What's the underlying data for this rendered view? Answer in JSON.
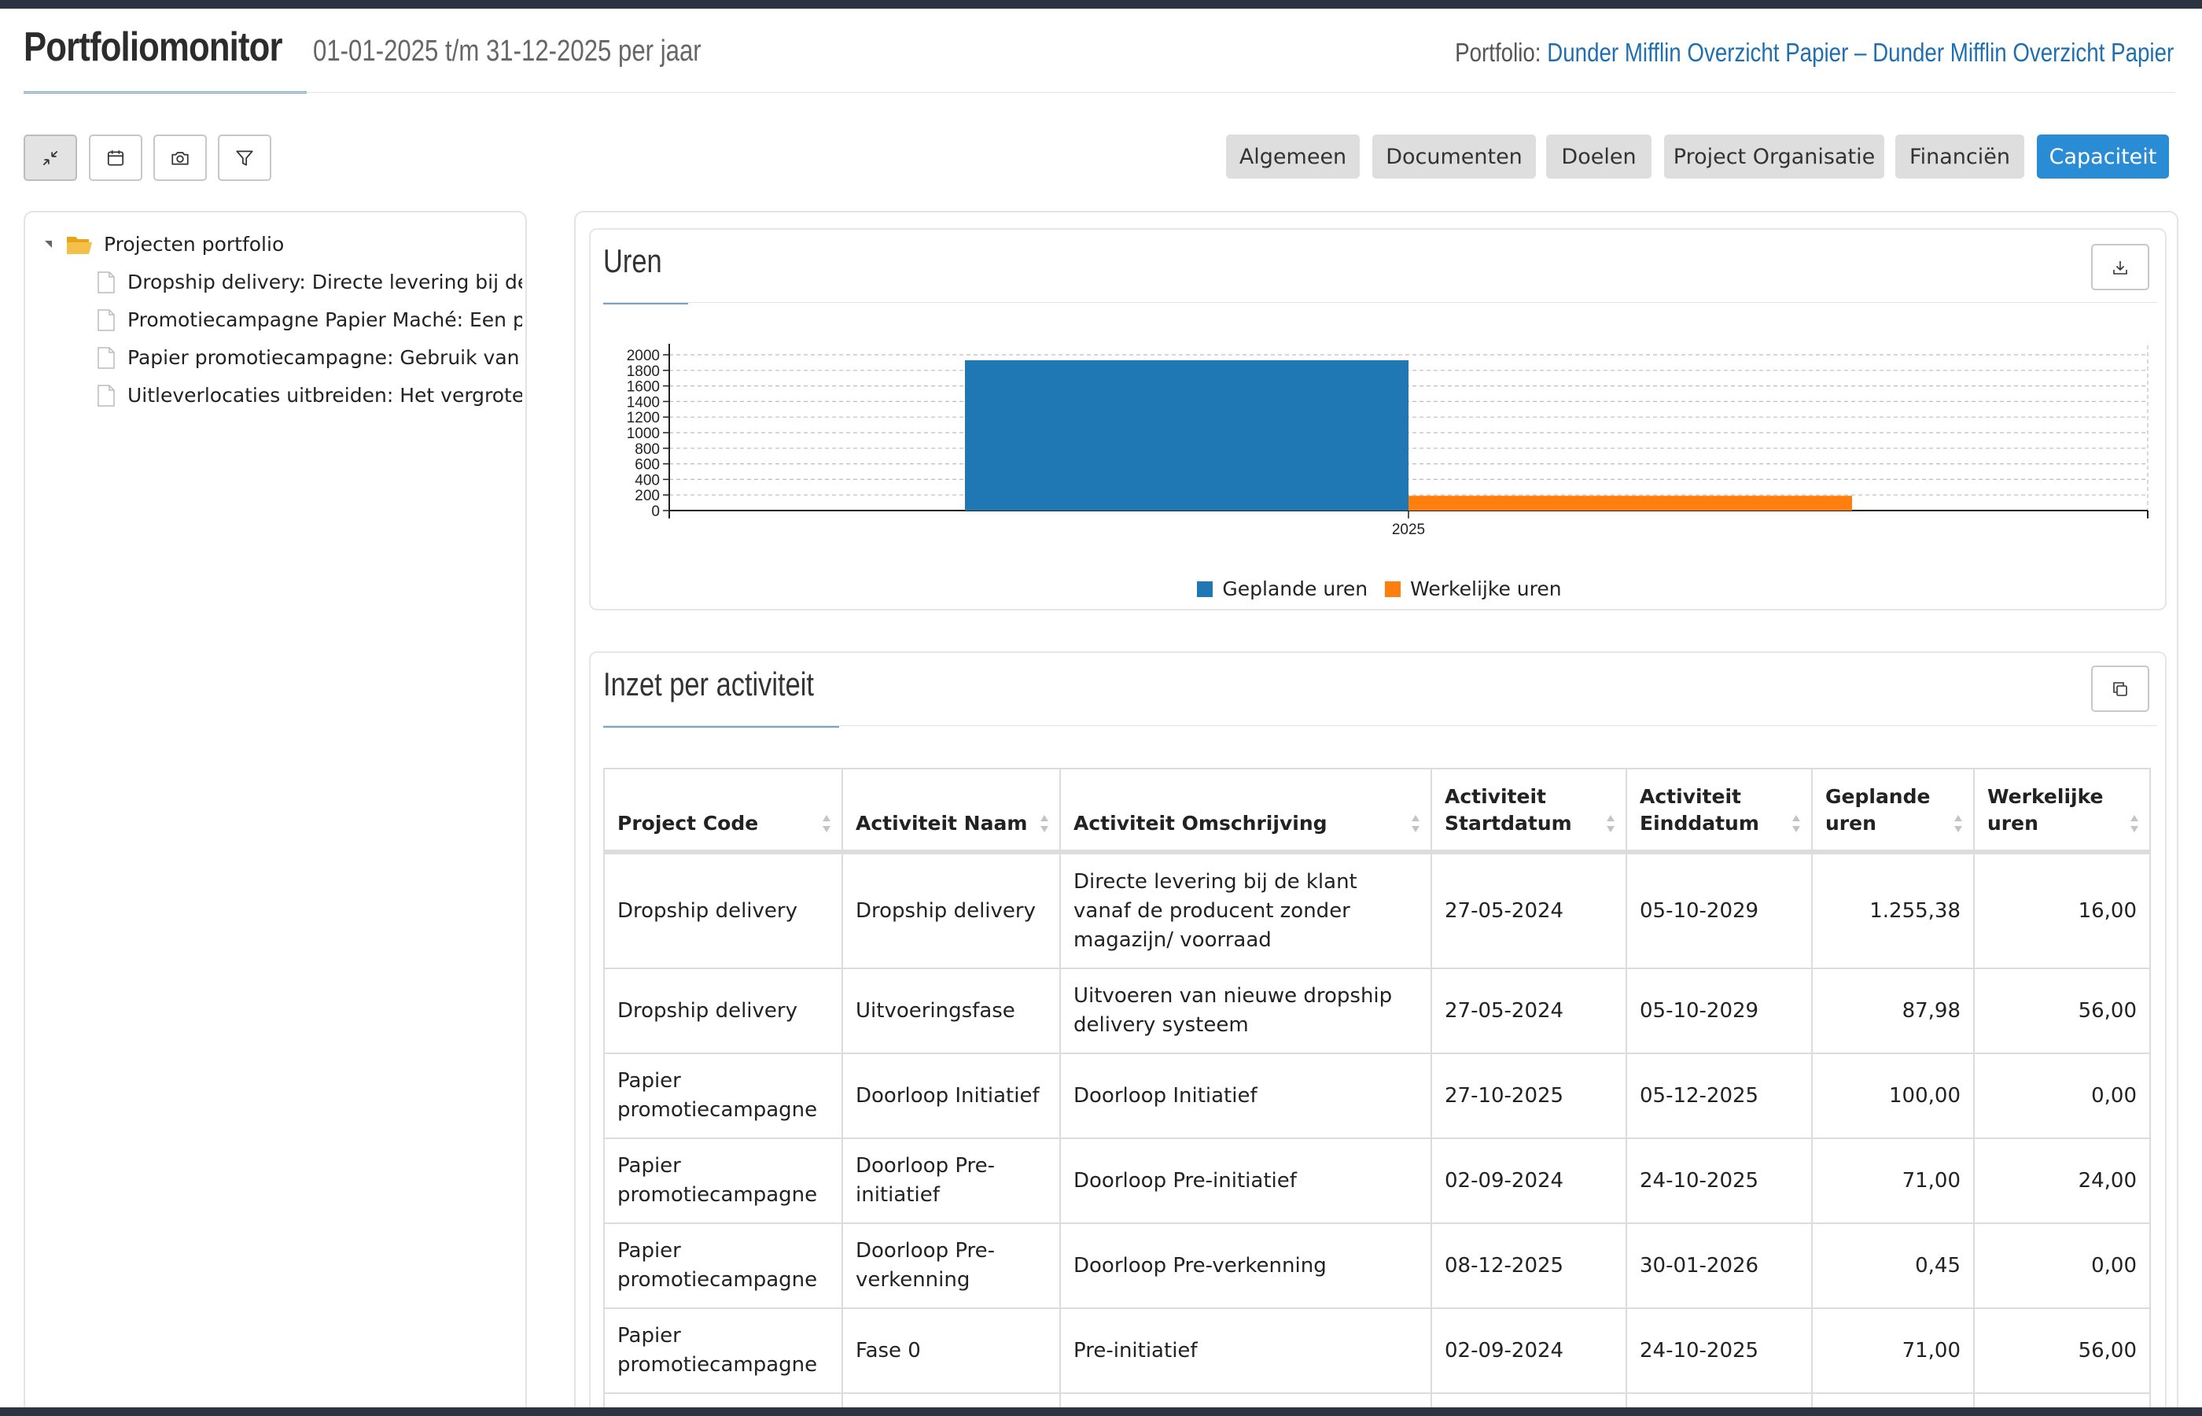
{
  "header": {
    "title": "Portfoliomonitor",
    "date_range": "01-01-2025 t/m 31-12-2025 per jaar",
    "portfolio_label": "Portfolio:",
    "portfolio_name": "Dunder Mifflin Overzicht Papier – Dunder Mifflin Overzicht Papier"
  },
  "toolbar": {
    "buttons": [
      {
        "icon": "collapse-icon"
      },
      {
        "icon": "calendar-icon"
      },
      {
        "icon": "camera-icon"
      },
      {
        "icon": "filter-icon"
      }
    ]
  },
  "nav_tabs": [
    "Algemeen",
    "Documenten",
    "Doelen",
    "Project Organisatie",
    "Financiën",
    "Capaciteit"
  ],
  "active_tab": "Capaciteit",
  "tree": {
    "root": "Projecten portfolio",
    "items": [
      "Dropship delivery: Directe levering bij de klant vanaf de producent",
      "Promotiecampagne Papier Maché: Een promotiecampagne",
      "Papier promotiecampagne: Gebruik van papier",
      "Uitleverlocaties uitbreiden: Het vergroten van het aantal"
    ]
  },
  "uren_card": {
    "title": "Uren",
    "legend": [
      "Geplande uren",
      "Werkelijke uren"
    ]
  },
  "chart_data": {
    "type": "bar",
    "categories": [
      "2025"
    ],
    "series": [
      {
        "name": "Geplande uren",
        "values": [
          1930
        ],
        "color": "#1f77b4"
      },
      {
        "name": "Werkelijke uren",
        "values": [
          190
        ],
        "color": "#ff7f0e"
      }
    ],
    "y_ticks": [
      "0",
      "200",
      "400",
      "600",
      "800",
      "1000",
      "1200",
      "1400",
      "1600",
      "1800",
      "2000"
    ],
    "ylim": [
      0,
      2000
    ],
    "grid": true,
    "legend_position": "bottom"
  },
  "inzet_card": {
    "title": "Inzet per activiteit",
    "columns": [
      {
        "line1": "Project Code",
        "line2": ""
      },
      {
        "line1": "Activiteit Naam",
        "line2": ""
      },
      {
        "line1": "Activiteit Omschrijving",
        "line2": ""
      },
      {
        "line1": "Activiteit",
        "line2": "Startdatum"
      },
      {
        "line1": "Activiteit",
        "line2": "Einddatum"
      },
      {
        "line1": "Geplande",
        "line2": "uren"
      },
      {
        "line1": "Werkelijke",
        "line2": "uren"
      }
    ],
    "rows": [
      [
        "Dropship delivery",
        "Dropship delivery",
        "Directe levering bij de klant vanaf de producent zonder magazijn/ voorraad",
        "27-05-2024",
        "05-10-2029",
        "1.255,38",
        "16,00"
      ],
      [
        "Dropship delivery",
        "Uitvoeringsfase",
        "Uitvoeren van nieuwe dropship delivery systeem",
        "27-05-2024",
        "05-10-2029",
        "87,98",
        "56,00"
      ],
      [
        "Papier promotiecampagne",
        "Doorloop Initiatief",
        "Doorloop Initiatief",
        "27-10-2025",
        "05-12-2025",
        "100,00",
        "0,00"
      ],
      [
        "Papier promotiecampagne",
        "Doorloop Pre-initiatief",
        "Doorloop Pre-initiatief",
        "02-09-2024",
        "24-10-2025",
        "71,00",
        "24,00"
      ],
      [
        "Papier promotiecampagne",
        "Doorloop Pre-verkenning",
        "Doorloop Pre-verkenning",
        "08-12-2025",
        "30-01-2026",
        "0,45",
        "0,00"
      ],
      [
        "Papier promotiecampagne",
        "Fase 0",
        "Pre-initiatief",
        "02-09-2024",
        "24-10-2025",
        "71,00",
        "56,00"
      ],
      [
        "",
        "",
        "",
        "",
        "",
        "",
        ""
      ]
    ]
  }
}
